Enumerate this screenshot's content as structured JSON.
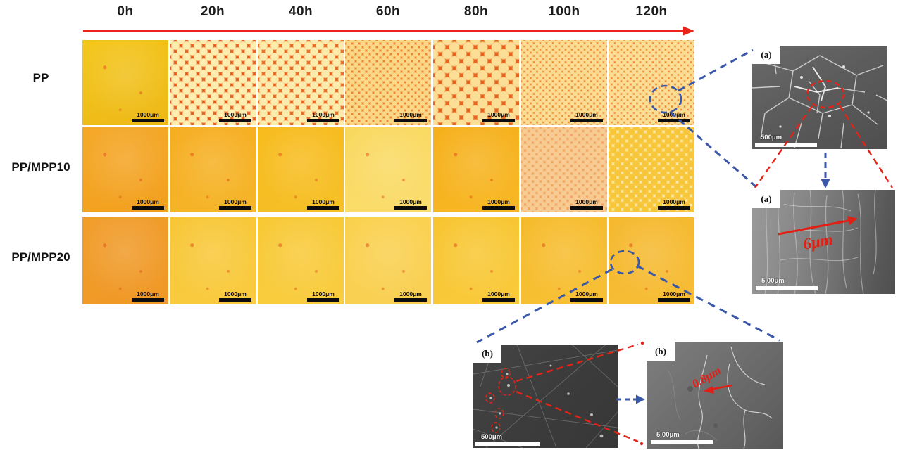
{
  "timeline": {
    "labels": [
      "0h",
      "20h",
      "40h",
      "60h",
      "80h",
      "100h",
      "120h"
    ],
    "arrow_color": "#ea2418"
  },
  "rows": [
    {
      "label": "PP"
    },
    {
      "label": "PP/MPP10"
    },
    {
      "label": "PP/MPP20"
    }
  ],
  "micrograph_scale_label": "1000μm",
  "micrograph_grid": {
    "rows": [
      [
        {
          "time": "0h",
          "texture": "smooth",
          "c1": "#f4c61c",
          "c2": "#edb917"
        },
        {
          "time": "20h",
          "texture": "cracked",
          "cell": "#fdedae",
          "line": "#e6571c",
          "size": 16
        },
        {
          "time": "40h",
          "texture": "cracked",
          "cell": "#fcebaa",
          "line": "#e8641f",
          "size": 16
        },
        {
          "time": "60h",
          "texture": "cracked",
          "cell": "#f9d888",
          "line": "#ee7f2c",
          "size": 10
        },
        {
          "time": "80h",
          "texture": "cracked",
          "cell": "#fbdf96",
          "line": "#e7641e",
          "size": 20
        },
        {
          "time": "100h",
          "texture": "cracked",
          "cell": "#fadc92",
          "line": "#ee8c38",
          "size": 9
        },
        {
          "time": "120h",
          "texture": "cracked",
          "cell": "#fade96",
          "line": "#ee8c38",
          "size": 9
        }
      ],
      [
        {
          "time": "0h",
          "texture": "smooth",
          "c1": "#f5a828",
          "c2": "#f2a01e"
        },
        {
          "time": "20h",
          "texture": "smooth",
          "c1": "#f6ad20",
          "c2": "#f5b62a"
        },
        {
          "time": "40h",
          "texture": "smooth",
          "c1": "#f7bb1c",
          "c2": "#f6c028"
        },
        {
          "time": "60h",
          "texture": "smooth",
          "c1": "#f9d85e",
          "c2": "#fadd6e"
        },
        {
          "time": "80h",
          "texture": "smooth",
          "c1": "#f6b01c",
          "c2": "#f7b724"
        },
        {
          "time": "100h",
          "texture": "cracked",
          "cell": "#f7cb92",
          "line": "#efa35e",
          "size": 11
        },
        {
          "time": "120h",
          "texture": "cracked",
          "cell": "#f7c63a",
          "line": "#fbe7a4",
          "size": 13
        }
      ],
      [
        {
          "time": "0h",
          "texture": "smooth",
          "c1": "#f19d2c",
          "c2": "#ef9826"
        },
        {
          "time": "20h",
          "texture": "smooth",
          "c1": "#f8c636",
          "c2": "#f9cb40"
        },
        {
          "time": "40h",
          "texture": "smooth",
          "c1": "#f8c834",
          "c2": "#f9cd42"
        },
        {
          "time": "60h",
          "texture": "smooth",
          "c1": "#fad14e",
          "c2": "#f9d054"
        },
        {
          "time": "80h",
          "texture": "smooth",
          "c1": "#f8c530",
          "c2": "#f9ca3c"
        },
        {
          "time": "100h",
          "texture": "smooth",
          "c1": "#f6bb2c",
          "c2": "#f7c034"
        },
        {
          "time": "120h",
          "texture": "smooth",
          "c1": "#f5b82e",
          "c2": "#f6bd36"
        }
      ]
    ]
  },
  "sem_panels": {
    "a_overview": {
      "label": "(a)",
      "scale_label": "500μm"
    },
    "a_detail": {
      "label": "(a)",
      "scale_label": "5.00μm",
      "annotation": "6μm"
    },
    "b_overview": {
      "label": "(b)",
      "scale_label": "500μm"
    },
    "b_detail": {
      "label": "(b)",
      "scale_label": "5.00μm",
      "annotation": "0.8μm"
    }
  },
  "colors": {
    "callout_blue": "#3a57a8",
    "callout_red": "#e42318",
    "timeline_red": "#ea2418",
    "scalebar_black": "#0d0d0d",
    "scalebar_white": "#ffffff"
  }
}
